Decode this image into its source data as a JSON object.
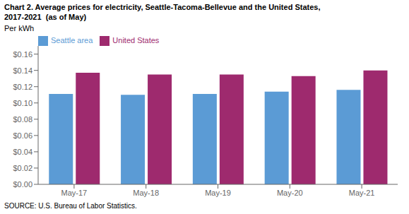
{
  "chart_data": {
    "type": "bar",
    "title": [
      "Chart 2. Average prices for electricity, Seattle-Tacoma-Bellevue and the United States,",
      "2017-2021  (as of May)"
    ],
    "ylabel": "Per kWh",
    "annotations": [
      "SOURCE: U.S. Bureau of Labor Statistics."
    ],
    "categories": [
      "May-17",
      "May-18",
      "May-19",
      "May-20",
      "May-21"
    ],
    "series": [
      {
        "name": "Seattle area",
        "color": "#5B9BD5",
        "values": [
          0.111,
          0.11,
          0.111,
          0.114,
          0.116
        ]
      },
      {
        "name": "United States",
        "color": "#9E2A6E",
        "values": [
          0.137,
          0.135,
          0.135,
          0.133,
          0.14
        ]
      }
    ],
    "ylim": [
      0.0,
      0.17
    ],
    "yticks": [
      {
        "value": 0.0,
        "label": "$0.00"
      },
      {
        "value": 0.02,
        "label": "$0.02"
      },
      {
        "value": 0.04,
        "label": "$0.04"
      },
      {
        "value": 0.06,
        "label": "$0.06"
      },
      {
        "value": 0.08,
        "label": "$0.08"
      },
      {
        "value": 0.1,
        "label": "$0.10"
      },
      {
        "value": 0.12,
        "label": "$0.12"
      },
      {
        "value": 0.14,
        "label": "$0.14"
      },
      {
        "value": 0.16,
        "label": "$0.16"
      }
    ],
    "grid": false,
    "legend": "upper left"
  }
}
